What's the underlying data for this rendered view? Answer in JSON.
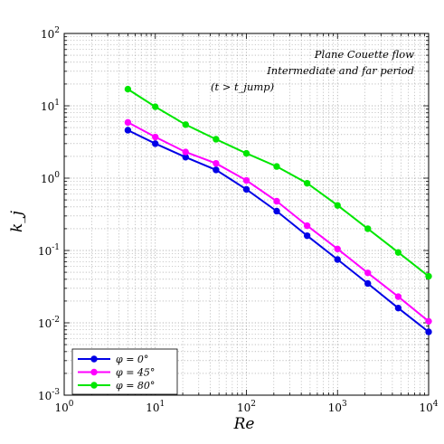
{
  "chart_data": {
    "type": "line",
    "xscale": "log",
    "yscale": "log",
    "xlim": [
      1,
      10000
    ],
    "ylim": [
      0.001,
      100
    ],
    "grid": true,
    "xlabel": "Re",
    "ylabel": "k_j",
    "x_tick_labels": [
      {
        "base": "10",
        "exp": "0"
      },
      {
        "base": "10",
        "exp": "1"
      },
      {
        "base": "10",
        "exp": "2"
      },
      {
        "base": "10",
        "exp": "3"
      },
      {
        "base": "10",
        "exp": "4"
      }
    ],
    "y_tick_labels": [
      {
        "base": "10",
        "exp": "-3"
      },
      {
        "base": "10",
        "exp": "-2"
      },
      {
        "base": "10",
        "exp": "-1"
      },
      {
        "base": "10",
        "exp": "0"
      },
      {
        "base": "10",
        "exp": "1"
      },
      {
        "base": "10",
        "exp": "2"
      }
    ],
    "annotation": [
      "Plane Couette flow",
      "Intermediate and far period",
      "(t > t_jump)"
    ],
    "legend_position": "bottom-left",
    "x": [
      5,
      10,
      21.5,
      46.4,
      100,
      215,
      464,
      1000,
      2150,
      4640,
      10000
    ],
    "series": [
      {
        "name": "φ = 0°",
        "color": "#0000e6",
        "values": [
          4.6,
          3.0,
          1.95,
          1.3,
          0.7,
          0.35,
          0.16,
          0.075,
          0.035,
          0.016,
          0.0075
        ]
      },
      {
        "name": "φ = 45°",
        "color": "#ff00ff",
        "values": [
          5.9,
          3.7,
          2.3,
          1.6,
          0.93,
          0.48,
          0.22,
          0.105,
          0.049,
          0.023,
          0.0105
        ]
      },
      {
        "name": "φ = 80°",
        "color": "#00e600",
        "values": [
          17,
          9.7,
          5.5,
          3.45,
          2.2,
          1.45,
          0.85,
          0.42,
          0.2,
          0.094,
          0.044
        ]
      }
    ]
  }
}
